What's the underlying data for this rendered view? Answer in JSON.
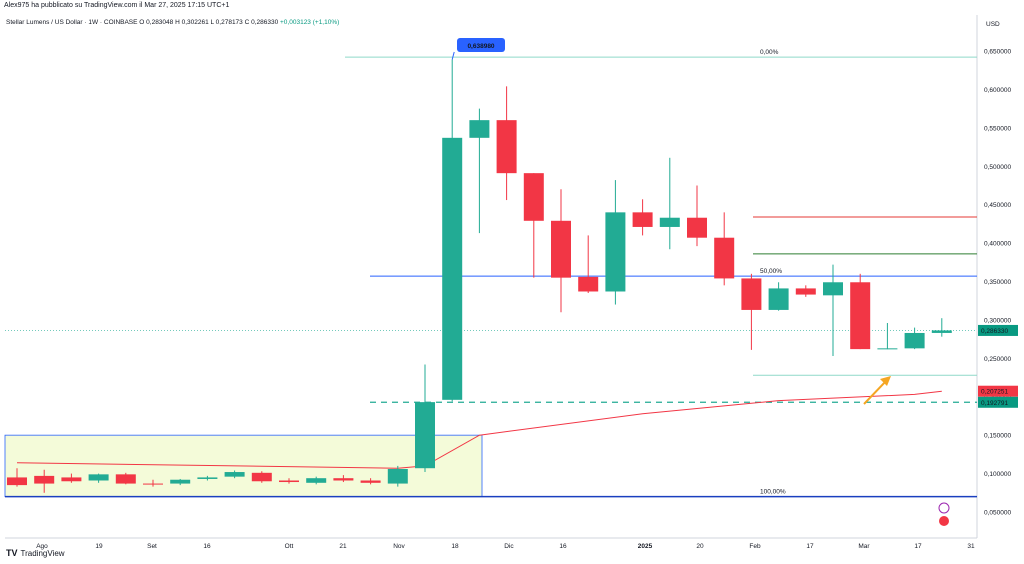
{
  "header": {
    "published": "Alex975 ha pubblicato su TradingView.com il Mar 27, 2025 17:15 UTC+1",
    "symbol": "Stellar Lumens / US Dollar · 1W · COINBASE",
    "ohlc": "O 0,283048  H 0,302261  L 0,278173  C 0,286330",
    "change": "+0,003123 (+1,10%)"
  },
  "currency": "USD",
  "brand": "TradingView",
  "chart_data": {
    "type": "candlestick",
    "y_ticks": [
      "0,650000",
      "0,600000",
      "0,550000",
      "0,500000",
      "0,450000",
      "0,400000",
      "0,350000",
      "0,300000",
      "0,250000",
      "0,200000",
      "0,150000",
      "0,100000",
      "0,050000"
    ],
    "ylim": [
      0.02,
      0.68
    ],
    "x_labels": [
      "Ago",
      "19",
      "Set",
      "16",
      "Ott",
      "21",
      "Nov",
      "18",
      "Dic",
      "16",
      "2025",
      "20",
      "Feb",
      "17",
      "Mar",
      "17",
      "31"
    ],
    "candles": [
      {
        "o": 0.095,
        "h": 0.107,
        "l": 0.083,
        "c": 0.085
      },
      {
        "o": 0.097,
        "h": 0.105,
        "l": 0.075,
        "c": 0.087
      },
      {
        "o": 0.095,
        "h": 0.1,
        "l": 0.088,
        "c": 0.09
      },
      {
        "o": 0.091,
        "h": 0.1,
        "l": 0.088,
        "c": 0.099
      },
      {
        "o": 0.099,
        "h": 0.101,
        "l": 0.086,
        "c": 0.087
      },
      {
        "o": 0.087,
        "h": 0.092,
        "l": 0.083,
        "c": 0.086
      },
      {
        "o": 0.087,
        "h": 0.093,
        "l": 0.085,
        "c": 0.092
      },
      {
        "o": 0.093,
        "h": 0.097,
        "l": 0.091,
        "c": 0.095
      },
      {
        "o": 0.096,
        "h": 0.104,
        "l": 0.094,
        "c": 0.102
      },
      {
        "o": 0.101,
        "h": 0.103,
        "l": 0.088,
        "c": 0.09
      },
      {
        "o": 0.091,
        "h": 0.094,
        "l": 0.087,
        "c": 0.089
      },
      {
        "o": 0.088,
        "h": 0.096,
        "l": 0.086,
        "c": 0.094
      },
      {
        "o": 0.094,
        "h": 0.098,
        "l": 0.089,
        "c": 0.091
      },
      {
        "o": 0.091,
        "h": 0.094,
        "l": 0.086,
        "c": 0.088
      },
      {
        "o": 0.087,
        "h": 0.11,
        "l": 0.083,
        "c": 0.106
      },
      {
        "o": 0.107,
        "h": 0.242,
        "l": 0.102,
        "c": 0.193
      },
      {
        "o": 0.196,
        "h": 0.63898,
        "l": 0.194,
        "c": 0.537
      },
      {
        "o": 0.537,
        "h": 0.575,
        "l": 0.413,
        "c": 0.56
      },
      {
        "o": 0.56,
        "h": 0.604,
        "l": 0.456,
        "c": 0.491
      },
      {
        "o": 0.491,
        "h": 0.491,
        "l": 0.355,
        "c": 0.429
      },
      {
        "o": 0.429,
        "h": 0.47,
        "l": 0.31,
        "c": 0.355
      },
      {
        "o": 0.356,
        "h": 0.41,
        "l": 0.335,
        "c": 0.337
      },
      {
        "o": 0.337,
        "h": 0.482,
        "l": 0.32,
        "c": 0.44
      },
      {
        "o": 0.44,
        "h": 0.457,
        "l": 0.41,
        "c": 0.421
      },
      {
        "o": 0.421,
        "h": 0.511,
        "l": 0.392,
        "c": 0.433
      },
      {
        "o": 0.433,
        "h": 0.475,
        "l": 0.396,
        "c": 0.407
      },
      {
        "o": 0.407,
        "h": 0.44,
        "l": 0.345,
        "c": 0.354
      },
      {
        "o": 0.354,
        "h": 0.36,
        "l": 0.261,
        "c": 0.313
      },
      {
        "o": 0.313,
        "h": 0.349,
        "l": 0.312,
        "c": 0.341
      },
      {
        "o": 0.341,
        "h": 0.345,
        "l": 0.33,
        "c": 0.333
      },
      {
        "o": 0.332,
        "h": 0.372,
        "l": 0.253,
        "c": 0.349
      },
      {
        "o": 0.349,
        "h": 0.36,
        "l": 0.262,
        "c": 0.262
      },
      {
        "o": 0.262,
        "h": 0.296,
        "l": 0.262,
        "c": 0.263
      },
      {
        "o": 0.263,
        "h": 0.29,
        "l": 0.262,
        "c": 0.283
      },
      {
        "o": 0.283048,
        "h": 0.302261,
        "l": 0.278173,
        "c": 0.28633
      }
    ],
    "ma_line": [
      [
        0,
        0.114
      ],
      [
        14,
        0.107
      ],
      [
        15,
        0.11
      ],
      [
        17,
        0.15
      ],
      [
        23,
        0.178
      ],
      [
        28,
        0.195
      ],
      [
        33,
        0.203
      ],
      [
        34,
        0.2072
      ]
    ],
    "fib_levels": [
      {
        "label": "0,00%",
        "value": 0.642,
        "color": "#8fd9c9"
      },
      {
        "label": "50,00%",
        "value": 0.357,
        "color": "#2962ff"
      },
      {
        "label": "100,00%",
        "value": 0.07,
        "color": "#1a3fbf"
      }
    ],
    "fib_extra": [
      {
        "value": 0.434,
        "color": "#e53935"
      },
      {
        "value": 0.386,
        "color": "#2e7d32"
      },
      {
        "value": 0.228,
        "color": "#8fd9c9"
      }
    ],
    "support_level": 0.1928,
    "callout_high": "0,638980",
    "price_labels": [
      {
        "text": "0,286330",
        "value": 0.2863,
        "color": "#089981"
      },
      {
        "text": "0,207251",
        "value": 0.2072,
        "color": "#f23645"
      },
      {
        "text": "0,192791",
        "value": 0.1928,
        "color": "#089981"
      }
    ],
    "colors": {
      "up": "#22ab94",
      "down": "#f23645",
      "ma": "#f23645",
      "box_fill": "#f4fbd9",
      "box_stroke": "#2962ff",
      "arrow": "#f5a623"
    }
  }
}
